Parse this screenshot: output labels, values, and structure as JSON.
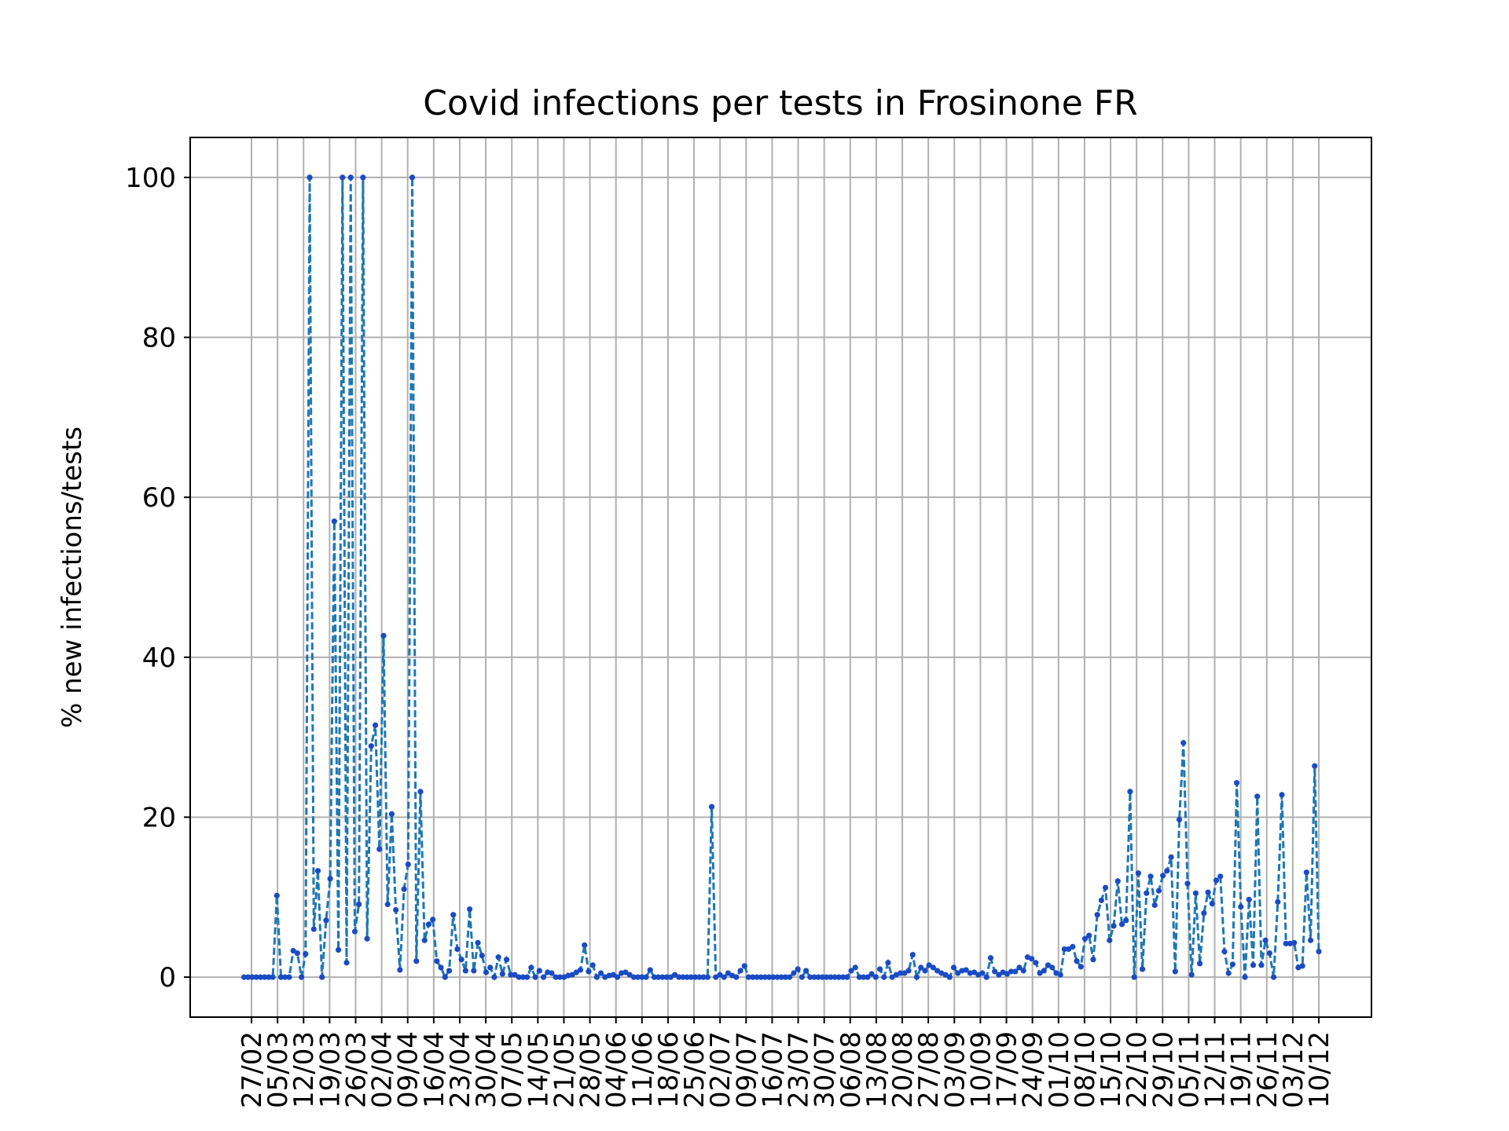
{
  "chart_data": {
    "type": "line",
    "title": "Covid infections per tests in Frosinone FR",
    "xlabel": "",
    "ylabel": "% new infections/tests",
    "ylim": [
      -5,
      105
    ],
    "yticks": [
      0,
      20,
      40,
      60,
      80,
      100
    ],
    "grid": true,
    "line_style": "dashed",
    "marker": "dot",
    "colors": {
      "line": "#1f77b4",
      "marker": "#1a4bc4"
    },
    "xticks": [
      "27/02",
      "05/03",
      "12/03",
      "19/03",
      "26/03",
      "02/04",
      "09/04",
      "16/04",
      "23/04",
      "30/04",
      "07/05",
      "14/05",
      "21/05",
      "28/05",
      "04/06",
      "11/06",
      "18/06",
      "25/06",
      "02/07",
      "09/07",
      "16/07",
      "23/07",
      "30/07",
      "06/08",
      "13/08",
      "20/08",
      "27/08",
      "03/09",
      "10/09",
      "17/09",
      "24/09",
      "01/10",
      "08/10",
      "15/10",
      "22/10",
      "29/10",
      "05/11",
      "12/11",
      "19/11",
      "26/11",
      "03/12",
      "10/12"
    ],
    "series": [
      {
        "name": "",
        "values": [
          0,
          0,
          0,
          0,
          0,
          0,
          0,
          0,
          10.2,
          0,
          0,
          0,
          3.3,
          3.0,
          0,
          2.9,
          100,
          6.0,
          13.3,
          0,
          7.1,
          12.3,
          57.0,
          3.4,
          100,
          1.8,
          100,
          5.7,
          9.1,
          100,
          4.8,
          28.9,
          31.5,
          16.0,
          42.7,
          9.1,
          20.4,
          8.4,
          0.9,
          11.0,
          14.1,
          100,
          2.0,
          23.2,
          4.6,
          6.6,
          7.2,
          2.0,
          1.2,
          0,
          0.8,
          7.8,
          3.5,
          2.2,
          0.8,
          8.5,
          0.8,
          4.3,
          2.7,
          0.6,
          1.2,
          0,
          2.5,
          0.4,
          2.2,
          0.3,
          0.3,
          0,
          0,
          0,
          1.2,
          0,
          0.8,
          0,
          0.6,
          0.5,
          0,
          0,
          0,
          0.2,
          0.3,
          0.6,
          0.9,
          4.0,
          0.7,
          1.5,
          0,
          0.5,
          0,
          0.2,
          0.3,
          0,
          0.5,
          0.6,
          0.3,
          0,
          0,
          0,
          0,
          0.9,
          0,
          0,
          0,
          0,
          0,
          0.3,
          0,
          0,
          0,
          0,
          0,
          0,
          0,
          0,
          21.3,
          0,
          0.3,
          0,
          0.5,
          0.2,
          0,
          0.8,
          1.4,
          0,
          0,
          0,
          0,
          0,
          0,
          0,
          0,
          0,
          0,
          0,
          0.5,
          1.0,
          0,
          0.8,
          0,
          0,
          0,
          0,
          0,
          0,
          0,
          0,
          0,
          0,
          0.8,
          1.2,
          0,
          0,
          0,
          0.4,
          0,
          1.0,
          0,
          1.8,
          0,
          0.3,
          0.5,
          0.5,
          0.8,
          2.8,
          0,
          1.2,
          0.8,
          1.5,
          1.2,
          0.8,
          0.5,
          0.3,
          0,
          1.2,
          0.5,
          0.8,
          0.9,
          0.5,
          0.6,
          0.3,
          0.5,
          0,
          2.4,
          0.7,
          0.3,
          0.6,
          0.4,
          0.7,
          0.7,
          1.2,
          0.8,
          2.5,
          2.3,
          1.8,
          0.5,
          0.8,
          1.5,
          1.2,
          0.5,
          0.3,
          3.5,
          3.5,
          3.8,
          2.0,
          1.3,
          4.8,
          5.2,
          2.2,
          7.8,
          9.6,
          11.2,
          4.6,
          6.4,
          12.0,
          6.6,
          7.1,
          23.2,
          0,
          13.0,
          1.0,
          10.5,
          12.6,
          9.0,
          10.8,
          12.7,
          13.3,
          15.0,
          0.7,
          19.7,
          29.3,
          11.7,
          0.3,
          10.5,
          1.7,
          8.0,
          10.6,
          9.2,
          12.1,
          12.6,
          3.2,
          0.5,
          1.6,
          24.3,
          8.8,
          0,
          9.7,
          1.5,
          22.6,
          1.5,
          4.6,
          3.0,
          0,
          9.4,
          22.8,
          4.2,
          4.2,
          4.3,
          1.2,
          1.4,
          13.1,
          4.6,
          26.4,
          3.2
        ]
      }
    ]
  }
}
